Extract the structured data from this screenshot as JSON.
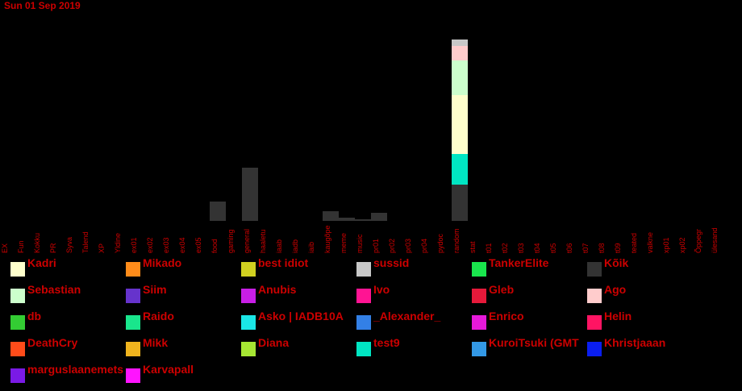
{
  "date_label": "Sun 01 Sep 2019",
  "chart_data": {
    "type": "bar",
    "stacked": true,
    "categories": [
      "EX",
      "Fun",
      "Kokku",
      "PR",
      "Syva",
      "Talend",
      "XP",
      "Yldine",
      "ex01",
      "ex02",
      "ex03",
      "ex04",
      "ex05",
      "food",
      "gaming",
      "general",
      "haaletu",
      "iaab",
      "iadb",
      "iaib",
      "kaugõpe",
      "meme",
      "music",
      "pr01",
      "pr02",
      "pr03",
      "pr04",
      "pydoc",
      "random",
      "stat",
      "t01",
      "t02",
      "t03",
      "t04",
      "t05",
      "t06",
      "t07",
      "t08",
      "t09",
      "teated",
      "valkne",
      "xp01",
      "xp02",
      "Õppegr",
      "ülesand"
    ],
    "series": [
      {
        "name": "Kõik",
        "color": "#333333",
        "values": {
          "food": 24,
          "general": 66,
          "kaugõpe": 12,
          "meme": 4,
          "music": 2,
          "pr01": 10,
          "random": 45
        }
      },
      {
        "name": "test9",
        "color": "#00e6c3",
        "values": {
          "random": 38
        }
      },
      {
        "name": "Kadri",
        "color": "#ffffcc",
        "values": {
          "random": 73
        }
      },
      {
        "name": "Sebastian",
        "color": "#ccffcc",
        "values": {
          "random": 43
        }
      },
      {
        "name": "Ago",
        "color": "#ffcccc",
        "values": {
          "random": 18
        }
      },
      {
        "name": "sussid",
        "color": "#c8c8c8",
        "values": {
          "random": 8
        }
      }
    ],
    "ylim": [
      0,
      240
    ]
  },
  "legend": [
    {
      "name": "Kadri",
      "color": "#ffffcc"
    },
    {
      "name": "Mikado",
      "color": "#ff8c1a"
    },
    {
      "name": "best idiot",
      "color": "#d0d020"
    },
    {
      "name": "sussid",
      "color": "#c8c8c8"
    },
    {
      "name": "TankerElite",
      "color": "#19e64d"
    },
    {
      "name": "Kõik",
      "color": "#333333"
    },
    {
      "name": "Sebastian",
      "color": "#ccffcc"
    },
    {
      "name": "Siim",
      "color": "#6633cc"
    },
    {
      "name": "Anubis",
      "color": "#c81ee6"
    },
    {
      "name": "Ivo",
      "color": "#ff1493"
    },
    {
      "name": "Gleb",
      "color": "#e6193a"
    },
    {
      "name": "Ago",
      "color": "#ffcccc"
    },
    {
      "name": "db",
      "color": "#33cc33"
    },
    {
      "name": "Raido",
      "color": "#19e68c"
    },
    {
      "name": "Asko | IADB10A",
      "color": "#1ae6e6"
    },
    {
      "name": "_Alexander_",
      "color": "#3380e6"
    },
    {
      "name": "Enrico",
      "color": "#e619d9"
    },
    {
      "name": "Helin",
      "color": "#ff1463"
    },
    {
      "name": "DeathCry",
      "color": "#ff4c1a"
    },
    {
      "name": "Mikk",
      "color": "#f0b41e"
    },
    {
      "name": "Diana",
      "color": "#a6e633"
    },
    {
      "name": "test9",
      "color": "#00e6c3"
    },
    {
      "name": "KuroiTsuki (GMT",
      "color": "#3399e6"
    },
    {
      "name": "Khristjaaan",
      "color": "#0a1ef0"
    },
    {
      "name": "marguslaanemets",
      "color": "#7a1ae6"
    },
    {
      "name": "Karvapall",
      "color": "#ff14ff"
    }
  ]
}
